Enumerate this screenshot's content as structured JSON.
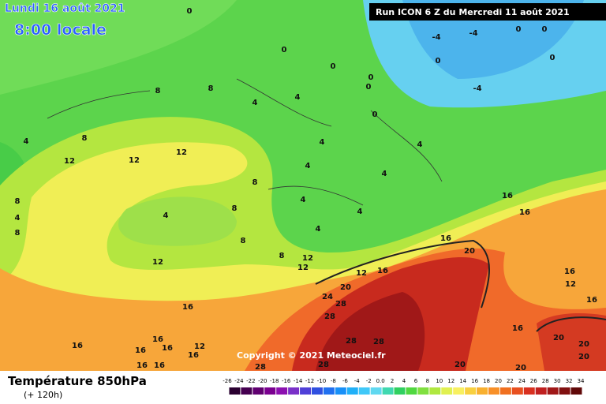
{
  "header": {
    "title": "Lundi 16 août 2021",
    "subtitle": "8:00 locale",
    "run": "Run ICON 6 Z du Mercredi 11 août 2021"
  },
  "copyright": "Copyright © 2021 Meteociel.fr",
  "footer": {
    "title": "Température 850hPa",
    "subtitle": "(+ 120h)"
  },
  "scale": {
    "labels": [
      "-26",
      "-24",
      "-22",
      "-20",
      "-18",
      "-16",
      "-14",
      "-12",
      "-10",
      "-8",
      "-6",
      "-4",
      "-2",
      "0.0",
      "2",
      "4",
      "6",
      "8",
      "10",
      "12",
      "14",
      "16",
      "18",
      "20",
      "22",
      "24",
      "26",
      "28",
      "30",
      "32",
      "34"
    ],
    "colors": [
      "#2a0030",
      "#450050",
      "#600070",
      "#7a0090",
      "#8c10b0",
      "#7a30c8",
      "#5040d8",
      "#3050e0",
      "#2070f0",
      "#1890f8",
      "#20b0f8",
      "#40c8f8",
      "#60d8f0",
      "#40d8b0",
      "#30d060",
      "#50d840",
      "#80e040",
      "#b0e840",
      "#e0f050",
      "#f8f060",
      "#f8d040",
      "#f8b030",
      "#f89028",
      "#f07020",
      "#e85020",
      "#d83020",
      "#c02020",
      "#a01818",
      "#801010",
      "#600808"
    ]
  },
  "map_labels": [
    "0",
    "0",
    "0",
    "0",
    "0",
    "0",
    "-4",
    "-4",
    "-4",
    "0",
    "0",
    "0",
    "0",
    "8",
    "8",
    "4",
    "4",
    "4",
    "8",
    "12",
    "12",
    "12",
    "4",
    "4",
    "4",
    "4",
    "8",
    "4",
    "8",
    "4",
    "4",
    "4",
    "8",
    "8",
    "12",
    "12",
    "12",
    "12",
    "16",
    "20",
    "24",
    "28",
    "28",
    "28",
    "28",
    "20",
    "16",
    "16",
    "16",
    "16",
    "12",
    "16",
    "16",
    "20",
    "20",
    "20",
    "20",
    "20",
    "16",
    "16",
    "16",
    "16",
    "16",
    "12",
    "16",
    "28",
    "28",
    "16",
    "16",
    "4",
    "8",
    "8"
  ]
}
